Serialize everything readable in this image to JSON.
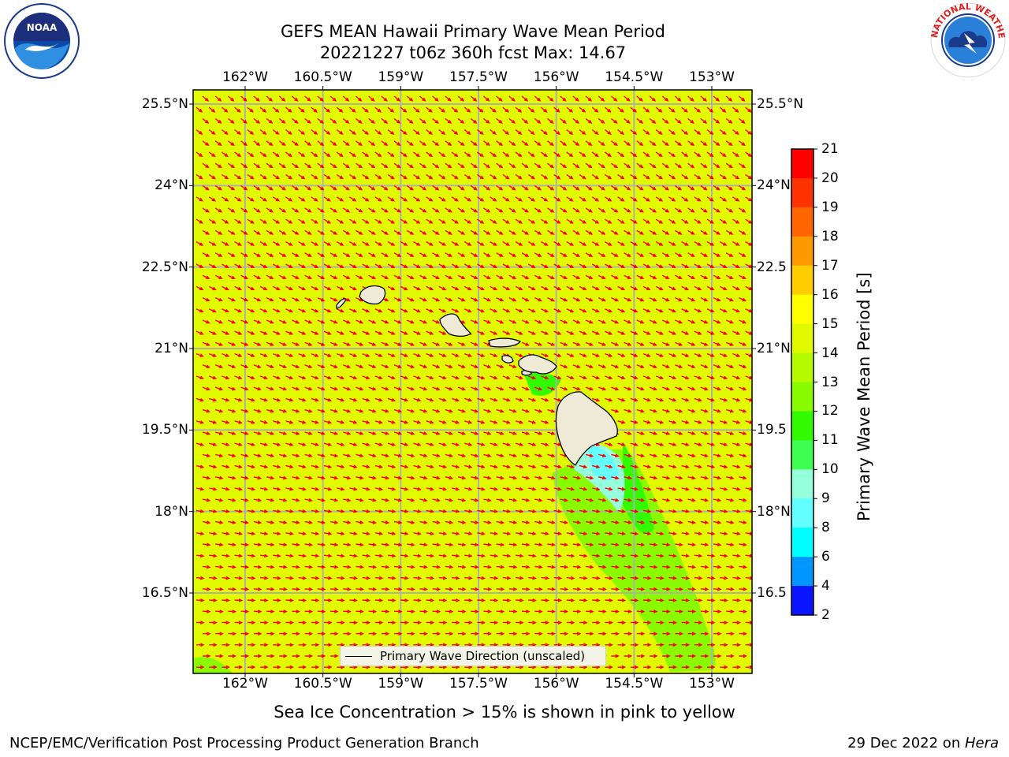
{
  "title": {
    "line1": "GEFS MEAN Hawaii Primary Wave Mean Period",
    "line2": "20221227 t06z 360h fcst   Max: 14.67"
  },
  "logos": {
    "noara_text": "NOAA",
    "noaa_ring": "NATIONAL OCEANIC AND ATMOSPHERIC ADMINISTRATION · U.S. DEPARTMENT OF COMMERCE",
    "nws_ring": "NATIONAL WEATHER SERVICE"
  },
  "map": {
    "lon_ticks": [
      "162°W",
      "160.5°W",
      "159°W",
      "157.5°W",
      "156°W",
      "154.5°W",
      "153°W"
    ],
    "lat_ticks_left": [
      "25.5°N",
      "24°N",
      "22.5°N",
      "21°N",
      "19.5°N",
      "18°N",
      "16.5°N"
    ],
    "lat_ticks_right": [
      "25.5°N",
      "24°N",
      "22.5",
      "21°N",
      "19.5",
      "18°N",
      "16.5"
    ],
    "lon_values": [
      -162,
      -160.5,
      -159,
      -157.5,
      -156,
      -154.5,
      -153
    ],
    "lat_values": [
      25.5,
      24,
      22.5,
      21,
      19.5,
      18,
      16.5
    ],
    "legend_label": "Primary Wave Direction (unscaled)",
    "colors": {
      "background_field": "#e2fa00",
      "low_period_green": "#8afa00",
      "grid": "#b0b0b0",
      "arrow": "#ff0000",
      "land": "#eeead6"
    }
  },
  "colorbar": {
    "title": "Primary Wave Mean Period [s]",
    "labels": [
      "21",
      "20",
      "19",
      "18",
      "17",
      "16",
      "15",
      "14",
      "13",
      "12",
      "11",
      "10",
      "9",
      "8",
      "6",
      "4",
      "2"
    ],
    "colors": [
      "#ff0000",
      "#ff3300",
      "#ff6600",
      "#ff9900",
      "#ffcc00",
      "#ffff00",
      "#e2fa00",
      "#b6fa00",
      "#8afa00",
      "#32fa00",
      "#3cff50",
      "#96ffdc",
      "#64ffff",
      "#00ffff",
      "#0096ff",
      "#0a14ff"
    ]
  },
  "footer": {
    "note": "Sea Ice Concentration > 15% is shown in pink to yellow",
    "branch": "NCEP/EMC/Verification Post Processing Product Generation Branch",
    "date": "29 Dec 2022 on ",
    "machine": "Hera"
  }
}
